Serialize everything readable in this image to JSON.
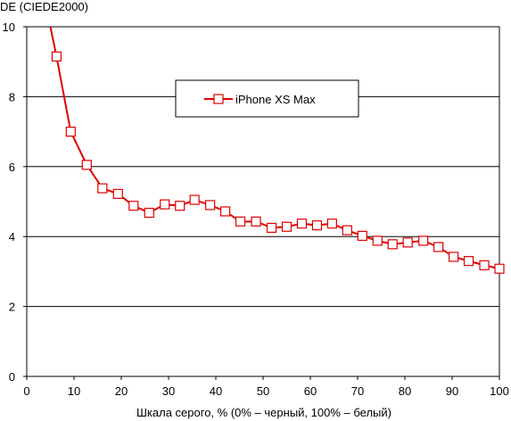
{
  "chart_data": {
    "type": "line",
    "ylabel": "DE (CIEDE2000)",
    "xlabel": "Шкала серого, % (0% – черный, 100% – белый)",
    "xlim": [
      0,
      100
    ],
    "ylim": [
      0,
      10
    ],
    "x_ticks": [
      "0",
      "10",
      "20",
      "30",
      "40",
      "50",
      "60",
      "70",
      "80",
      "90",
      "100"
    ],
    "y_ticks": [
      "0",
      "2",
      "4",
      "6",
      "8",
      "10"
    ],
    "grid": "horizontal",
    "legend_position": "top-center",
    "series": [
      {
        "name": "iPhone XS Max",
        "color": "#e00000",
        "marker": "square-open",
        "line_start": [
          5,
          10
        ],
        "x": [
          6.3,
          9.3,
          12.7,
          16.0,
          19.3,
          22.6,
          25.9,
          29.2,
          32.4,
          35.5,
          38.8,
          42.0,
          45.2,
          48.5,
          51.8,
          55.0,
          58.2,
          61.4,
          64.6,
          67.8,
          71.0,
          74.2,
          77.4,
          80.6,
          83.9,
          87.1,
          90.3,
          93.5,
          96.8,
          100.0
        ],
        "y": [
          9.15,
          7.0,
          6.05,
          5.38,
          5.22,
          4.88,
          4.68,
          4.92,
          4.88,
          5.05,
          4.9,
          4.72,
          4.43,
          4.43,
          4.25,
          4.28,
          4.37,
          4.32,
          4.37,
          4.18,
          4.02,
          3.88,
          3.78,
          3.83,
          3.88,
          3.7,
          3.42,
          3.3,
          3.18,
          3.08
        ]
      }
    ]
  }
}
